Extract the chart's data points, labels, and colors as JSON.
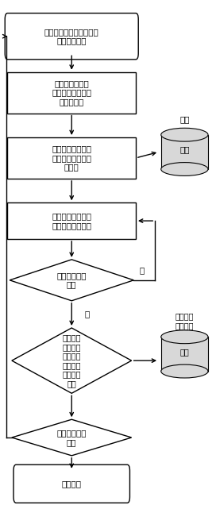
{
  "bg_color": "#ffffff",
  "line_color": "#000000",
  "box_fill": "#ffffff",
  "box_edge": "#000000",
  "box1_text": "着陆平台降落在待测区域\n仪器开机自检",
  "box2_text": "移动水冰提取装\n置，利用传动机构\n插入月壤中",
  "box3_text": "水冰提取装置加载\n工作电流，记录加\n热温度",
  "box4_text": "启动分析仪，测量\n水含量及氢同位素",
  "dia5_text": "温度达到设定\n温度",
  "dia6_text": "降温，收\n回水冰提\n取装置，\n完成本该\n区域分析\n流程",
  "dia7_text": "进行下一区域\n测量",
  "box8_text": "分析结束",
  "cyl1_label": "存储",
  "cyl1_top": "温度",
  "cyl2_label": "存储",
  "cyl2_top": "水含量及\n氢同位素",
  "yes_label": "是",
  "no_label": "否"
}
